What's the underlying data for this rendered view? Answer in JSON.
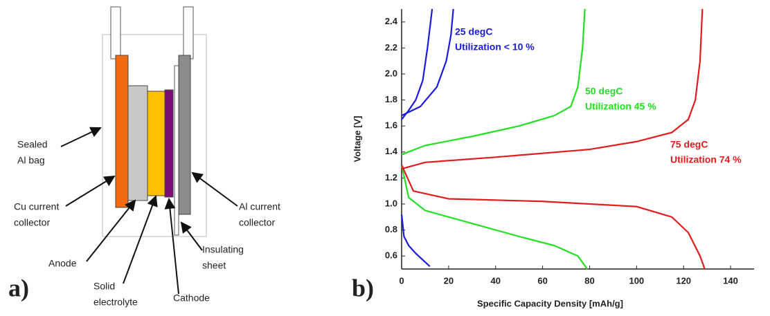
{
  "diagram": {
    "panel_label": "a)",
    "labels": [
      {
        "lines": [
          "Sealed",
          "Al bag"
        ]
      },
      {
        "lines": [
          "Cu current",
          "collector"
        ]
      },
      {
        "lines": [
          "Anode"
        ]
      },
      {
        "lines": [
          "Solid",
          "electrolyte"
        ]
      },
      {
        "lines": [
          "Cathode"
        ]
      },
      {
        "lines": [
          "Insulating",
          "sheet"
        ]
      },
      {
        "lines": [
          "Al current",
          "collector"
        ]
      }
    ]
  },
  "chart_data": {
    "type": "line",
    "panel_label": "b)",
    "x_label": "Specific Capacity Density [mAh/g]",
    "y_label": "Voltage [V]",
    "xlim": [
      0,
      150
    ],
    "ylim": [
      0.5,
      2.5
    ],
    "xticks": [
      0,
      20,
      40,
      60,
      80,
      100,
      120,
      140
    ],
    "yticks": [
      0.6,
      0.8,
      {
        "value": 1.0,
        "label": "1.0"
      },
      1.2,
      1.4,
      1.6,
      1.8,
      {
        "value": 2.0,
        "label": "2.0"
      },
      2.2,
      2.4
    ],
    "series": [
      {
        "color": "#1a1adf",
        "x": [
          0,
          1,
          3,
          6,
          9,
          12
        ],
        "values": [
          0.92,
          0.75,
          0.68,
          0.62,
          0.57,
          0.52
        ]
      },
      {
        "color": "#1a1adf",
        "x": [
          0,
          3,
          6,
          9,
          11,
          13
        ],
        "values": [
          1.65,
          1.72,
          1.8,
          1.95,
          2.2,
          2.5
        ]
      },
      {
        "color": "#1a1adf",
        "x": [
          0,
          8,
          15,
          19,
          21,
          22
        ],
        "values": [
          1.68,
          1.75,
          1.9,
          2.1,
          2.3,
          2.5
        ]
      },
      {
        "color": "#22e022",
        "x": [
          0,
          10,
          30,
          50,
          65,
          72,
          75,
          77,
          78
        ],
        "values": [
          1.38,
          1.45,
          1.52,
          1.6,
          1.68,
          1.75,
          1.9,
          2.2,
          2.5
        ]
      },
      {
        "color": "#22e022",
        "x": [
          0,
          3,
          10,
          30,
          50,
          65,
          75,
          79
        ],
        "values": [
          1.3,
          1.05,
          0.95,
          0.85,
          0.75,
          0.68,
          0.6,
          0.5
        ]
      },
      {
        "color": "#e01c1c",
        "x": [
          0,
          10,
          40,
          80,
          100,
          115,
          122,
          125,
          127,
          128
        ],
        "values": [
          1.27,
          1.32,
          1.36,
          1.42,
          1.48,
          1.55,
          1.65,
          1.8,
          2.1,
          2.5
        ]
      },
      {
        "color": "#e01c1c",
        "x": [
          0,
          5,
          20,
          60,
          100,
          115,
          122,
          127,
          129
        ],
        "values": [
          1.3,
          1.1,
          1.04,
          1.02,
          0.98,
          0.9,
          0.78,
          0.6,
          0.5
        ]
      }
    ],
    "annotations": [
      {
        "lines": [
          "25 degC",
          "Utilization < 10 %"
        ],
        "color": "#1a1adf"
      },
      {
        "lines": [
          "50 degC",
          "Utilization 45 %"
        ],
        "color": "#22e022"
      },
      {
        "lines": [
          "75 degC",
          "Utilization 74 %"
        ],
        "color": "#e01c1c"
      }
    ]
  }
}
